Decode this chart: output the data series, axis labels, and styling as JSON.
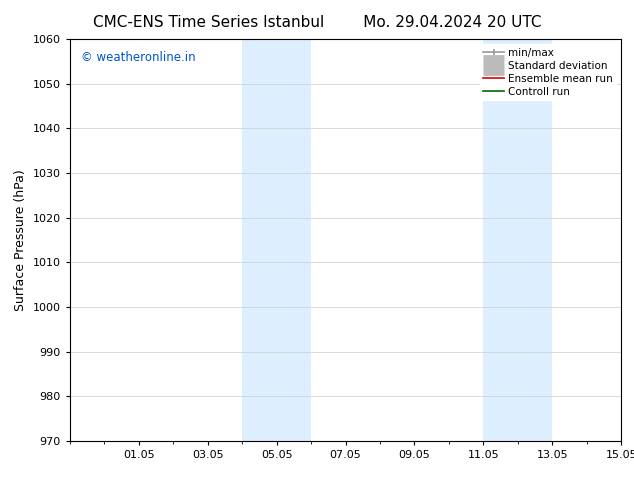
{
  "title_left": "CMC-ENS Time Series Istanbul",
  "title_right": "Mo. 29.04.2024 20 UTC",
  "ylabel": "Surface Pressure (hPa)",
  "ylim": [
    970,
    1060
  ],
  "yticks": [
    970,
    980,
    990,
    1000,
    1010,
    1020,
    1030,
    1040,
    1050,
    1060
  ],
  "xlim": [
    0,
    16
  ],
  "xtick_labels": [
    "01.05",
    "03.05",
    "05.05",
    "07.05",
    "09.05",
    "11.05",
    "13.05",
    "15.05"
  ],
  "xtick_positions": [
    2,
    4,
    6,
    8,
    10,
    12,
    14,
    16
  ],
  "shaded_bands": [
    {
      "x_start": 5,
      "x_end": 7
    },
    {
      "x_start": 12,
      "x_end": 14
    }
  ],
  "shaded_color": "#ddeeff",
  "watermark_text": "© weatheronline.in",
  "watermark_color": "#0055cc",
  "legend_entries": [
    {
      "label": "min/max",
      "color": "#999999",
      "lw": 1.2,
      "style": "line_with_caps"
    },
    {
      "label": "Standard deviation",
      "color": "#bbbbbb",
      "lw": 5,
      "style": "thick"
    },
    {
      "label": "Ensemble mean run",
      "color": "#dd0000",
      "lw": 1.2,
      "style": "line"
    },
    {
      "label": "Controll run",
      "color": "#006600",
      "lw": 1.2,
      "style": "line"
    }
  ],
  "bg_color": "#ffffff",
  "spine_color": "#000000",
  "grid_color": "#cccccc",
  "title_fontsize": 11,
  "axis_label_fontsize": 9,
  "tick_fontsize": 8,
  "legend_fontsize": 7.5
}
